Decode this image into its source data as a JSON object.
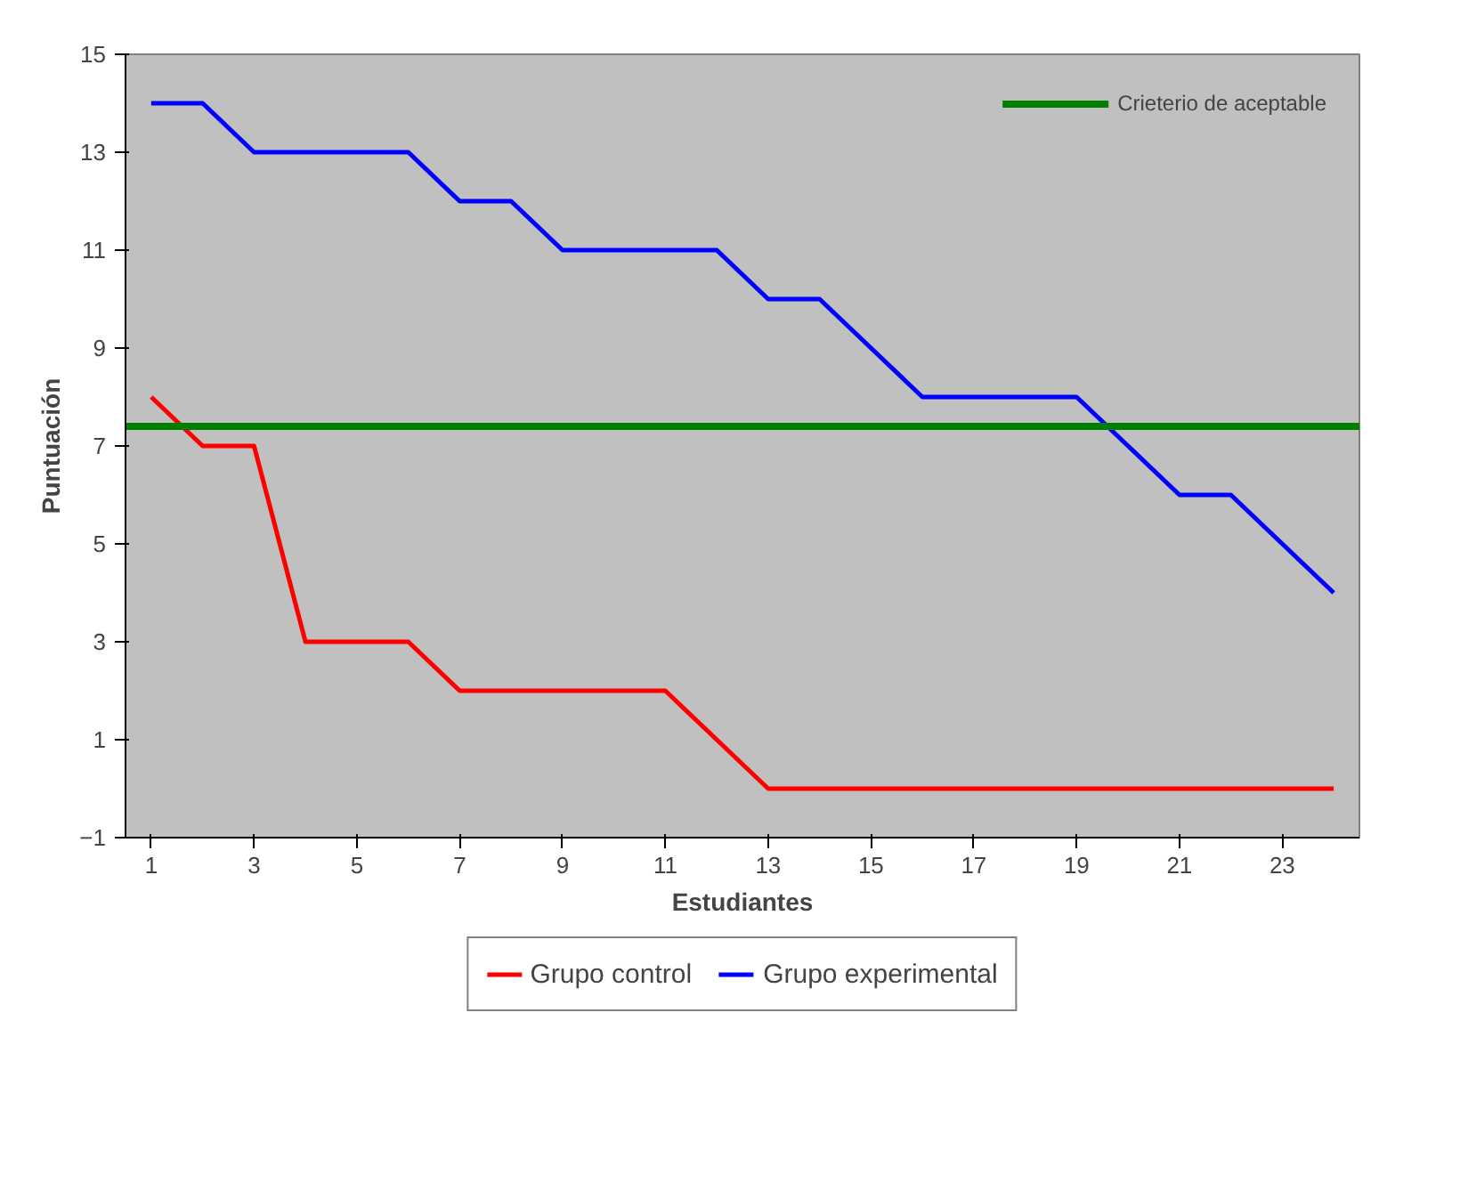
{
  "chart_data": {
    "type": "line",
    "xlabel": "Estudiantes",
    "ylabel": "Puntuación",
    "x": [
      1,
      2,
      3,
      4,
      5,
      6,
      7,
      8,
      9,
      10,
      11,
      12,
      13,
      14,
      15,
      16,
      17,
      18,
      19,
      20,
      21,
      22,
      23,
      24
    ],
    "series": [
      {
        "name": "Grupo control",
        "color": "#ff0000",
        "values": [
          8,
          7,
          7,
          3,
          3,
          3,
          2,
          2,
          2,
          2,
          2,
          1,
          0,
          0,
          0,
          0,
          0,
          0,
          0,
          0,
          0,
          0,
          0,
          0
        ]
      },
      {
        "name": "Grupo experimental",
        "color": "#0000ff",
        "values": [
          14,
          14,
          13,
          13,
          13,
          13,
          12,
          12,
          11,
          11,
          11,
          11,
          10,
          10,
          9,
          8,
          8,
          8,
          8,
          7,
          6,
          6,
          5,
          4
        ]
      }
    ],
    "ref_lines": [
      {
        "axis": "y",
        "value": 7.4,
        "label": "Crieterio de aceptable",
        "color": "#008000"
      }
    ],
    "xlim": [
      0.5,
      24.5
    ],
    "xticks": [
      1,
      3,
      5,
      7,
      9,
      11,
      13,
      15,
      17,
      19,
      21,
      23
    ],
    "ylim": [
      -1,
      15
    ],
    "yticks": [
      -1,
      1,
      3,
      5,
      7,
      9,
      11,
      13,
      15
    ],
    "grid": false,
    "legend": "bottom",
    "marker": "none",
    "line_style": "solid"
  }
}
